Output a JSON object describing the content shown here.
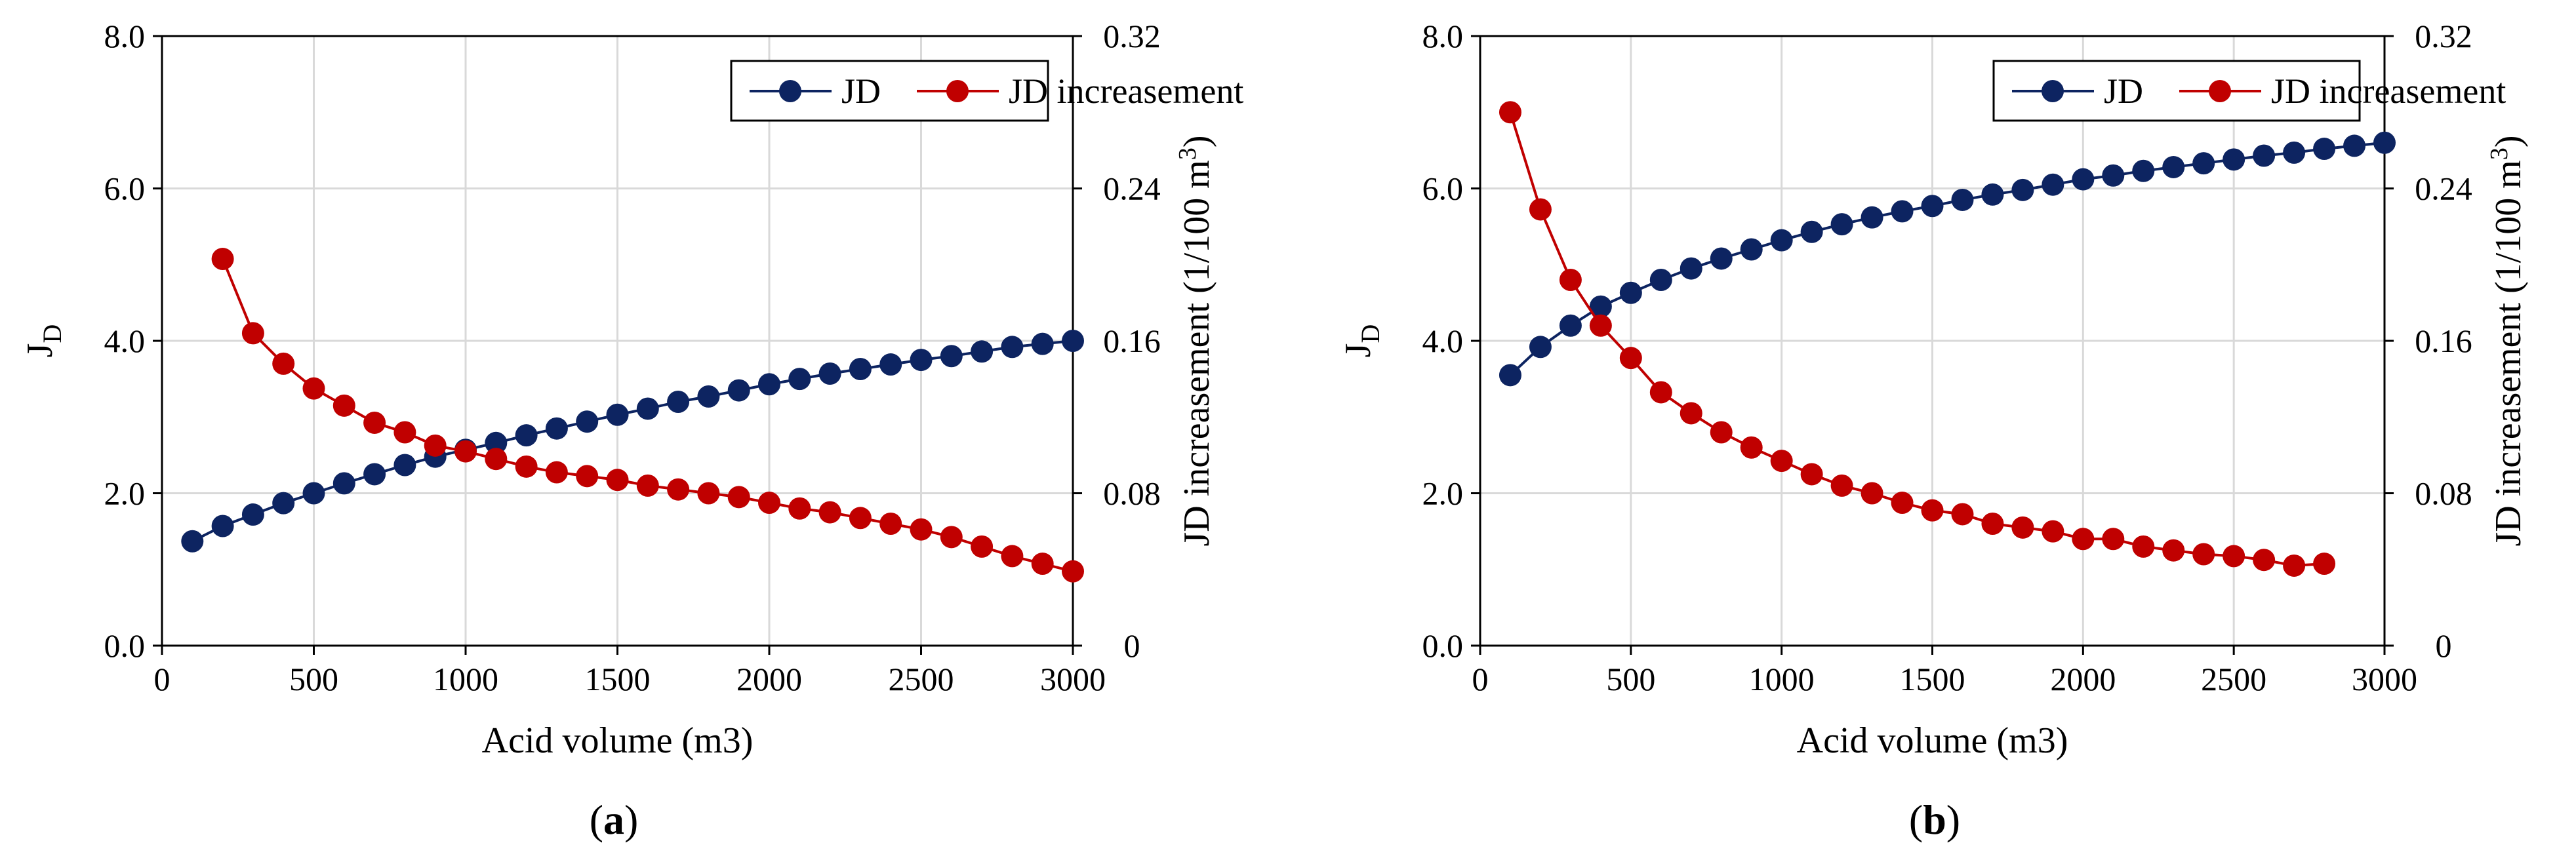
{
  "chart_data": [
    {
      "type": "line",
      "panel_label": {
        "open": "(",
        "letter": "a",
        "close": ")"
      },
      "xlabel": "Acid volume (m3)",
      "ylabel": {
        "main": "J",
        "sub": "D"
      },
      "y2label": {
        "main": "JD increasement (1/100 m",
        "sup": "3",
        "close": ")"
      },
      "xlim": [
        0,
        3000
      ],
      "ylim": [
        0,
        8
      ],
      "y2lim": [
        0,
        0.32
      ],
      "x_ticks": [
        "0",
        "500",
        "1000",
        "1500",
        "2000",
        "2500",
        "3000"
      ],
      "y_ticks": [
        "0.0",
        "2.0",
        "4.0",
        "6.0",
        "8.0"
      ],
      "y2_ticks": [
        "0",
        "0.08",
        "0.16",
        "0.24",
        "0.32"
      ],
      "grid": true,
      "legend_position": "top-right",
      "series": [
        {
          "name": "JD",
          "axis": "left",
          "color": "#0d2461",
          "x": [
            100,
            200,
            300,
            400,
            500,
            600,
            700,
            800,
            900,
            1000,
            1100,
            1200,
            1300,
            1400,
            1500,
            1600,
            1700,
            1800,
            1900,
            2000,
            2100,
            2200,
            2300,
            2400,
            2500,
            2600,
            2700,
            2800,
            2900,
            3000
          ],
          "values": [
            1.37,
            1.57,
            1.72,
            1.87,
            2.0,
            2.13,
            2.25,
            2.37,
            2.48,
            2.57,
            2.66,
            2.76,
            2.85,
            2.94,
            3.03,
            3.11,
            3.2,
            3.27,
            3.35,
            3.43,
            3.5,
            3.57,
            3.63,
            3.69,
            3.75,
            3.8,
            3.86,
            3.92,
            3.96,
            4.0
          ]
        },
        {
          "name": "JD  increasement",
          "axis": "right",
          "color": "#c00000",
          "x": [
            200,
            300,
            400,
            500,
            600,
            700,
            800,
            900,
            1000,
            1100,
            1200,
            1300,
            1400,
            1500,
            1600,
            1700,
            1800,
            1900,
            2000,
            2100,
            2200,
            2300,
            2400,
            2500,
            2600,
            2700,
            2800,
            2900,
            3000
          ],
          "values": [
            0.203,
            0.164,
            0.148,
            0.135,
            0.126,
            0.117,
            0.112,
            0.105,
            0.102,
            0.098,
            0.094,
            0.091,
            0.089,
            0.087,
            0.084,
            0.082,
            0.08,
            0.078,
            0.075,
            0.072,
            0.07,
            0.067,
            0.064,
            0.061,
            0.057,
            0.052,
            0.047,
            0.043,
            0.039
          ]
        }
      ]
    },
    {
      "type": "line",
      "panel_label": {
        "open": "(",
        "letter": "b",
        "close": ")"
      },
      "xlabel": "Acid volume (m3)",
      "ylabel": {
        "main": "J",
        "sub": "D"
      },
      "y2label": {
        "main": "JD increasement (1/100 m",
        "sup": "3",
        "close": ")"
      },
      "xlim": [
        0,
        3000
      ],
      "ylim": [
        0,
        8
      ],
      "y2lim": [
        0,
        0.32
      ],
      "x_ticks": [
        "0",
        "500",
        "1000",
        "1500",
        "2000",
        "2500",
        "3000"
      ],
      "y_ticks": [
        "0.0",
        "2.0",
        "4.0",
        "6.0",
        "8.0"
      ],
      "y2_ticks": [
        "0",
        "0.08",
        "0.16",
        "0.24",
        "0.32"
      ],
      "grid": true,
      "legend_position": "top-right",
      "series": [
        {
          "name": "JD",
          "axis": "left",
          "color": "#0d2461",
          "x": [
            100,
            200,
            300,
            400,
            500,
            600,
            700,
            800,
            900,
            1000,
            1100,
            1200,
            1300,
            1400,
            1500,
            1600,
            1700,
            1800,
            1900,
            2000,
            2100,
            2200,
            2300,
            2400,
            2500,
            2600,
            2700,
            2800,
            2900,
            3000
          ],
          "values": [
            3.55,
            3.92,
            4.2,
            4.45,
            4.63,
            4.8,
            4.95,
            5.08,
            5.2,
            5.32,
            5.43,
            5.53,
            5.62,
            5.7,
            5.77,
            5.85,
            5.92,
            5.98,
            6.05,
            6.12,
            6.17,
            6.23,
            6.28,
            6.33,
            6.38,
            6.43,
            6.47,
            6.52,
            6.56,
            6.6
          ]
        },
        {
          "name": "JD  increasement",
          "axis": "right",
          "color": "#c00000",
          "x": [
            100,
            200,
            300,
            400,
            500,
            600,
            700,
            800,
            900,
            1000,
            1100,
            1200,
            1300,
            1400,
            1500,
            1600,
            1700,
            1800,
            1900,
            2000,
            2100,
            2200,
            2300,
            2400,
            2500,
            2600,
            2700,
            2800
          ],
          "values": [
            0.28,
            0.229,
            0.192,
            0.168,
            0.151,
            0.133,
            0.122,
            0.112,
            0.104,
            0.097,
            0.09,
            0.084,
            0.08,
            0.075,
            0.071,
            0.069,
            0.064,
            0.062,
            0.06,
            0.056,
            0.056,
            0.052,
            0.05,
            0.048,
            0.047,
            0.045,
            0.042,
            0.043
          ]
        }
      ]
    }
  ]
}
